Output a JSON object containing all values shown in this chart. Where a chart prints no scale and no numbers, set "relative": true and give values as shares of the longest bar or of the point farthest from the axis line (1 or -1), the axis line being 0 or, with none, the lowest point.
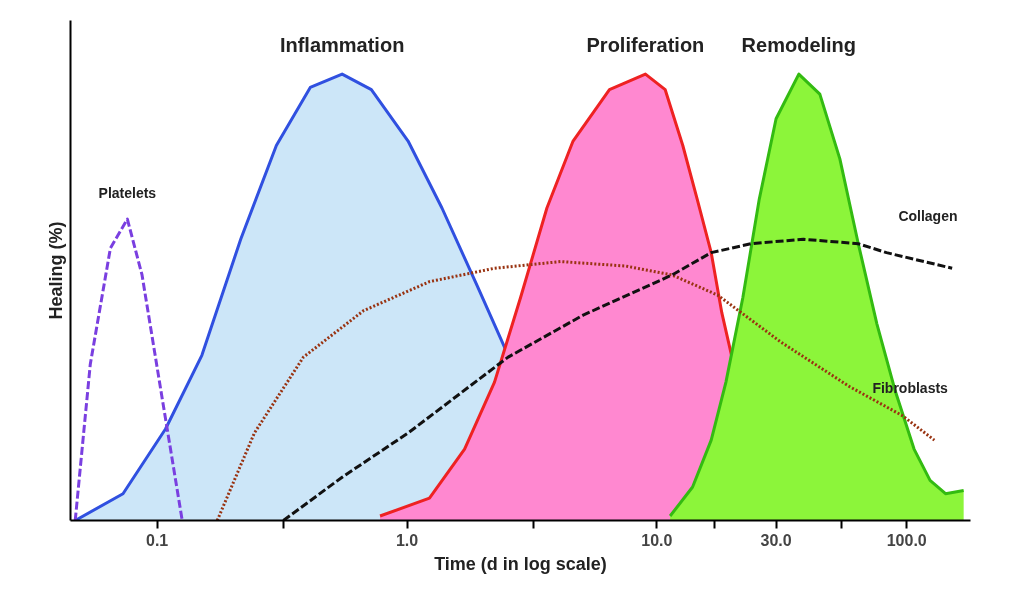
{
  "chart_data": {
    "type": "area",
    "relative": true,
    "xlabel": "Time (d in log scale)",
    "ylabel": "Healing (%)",
    "xlim": [
      0.045,
      180
    ],
    "xticks": [
      0.1,
      {
        "value": 0.32,
        "label": null
      },
      {
        "value": 1,
        "label": "1.0"
      },
      {
        "value": 3.2,
        "label": null
      },
      {
        "value": 10,
        "label": "10.0"
      },
      {
        "value": 17,
        "label": null
      },
      {
        "value": 30,
        "label": "30.0"
      },
      {
        "value": 55,
        "label": null
      },
      {
        "value": 100,
        "label": "100.0"
      }
    ],
    "grid": false,
    "log": "x",
    "series": [
      {
        "name": "Inflammation",
        "color": "#cce6f8",
        "x": [
          0.047,
          0.073,
          0.108,
          0.151,
          0.216,
          0.3,
          0.41,
          0.55,
          0.72,
          1.01,
          1.38,
          1.93,
          2.54
        ],
        "values": [
          0,
          0.06,
          0.205,
          0.37,
          0.63,
          0.84,
          0.97,
          1.0,
          0.965,
          0.85,
          0.7,
          0.52,
          0.37
        ]
      },
      {
        "name": "Proliferation",
        "color": "#ff88d0",
        "x": [
          0.78,
          1.23,
          1.7,
          2.24,
          2.85,
          3.63,
          4.62,
          6.46,
          9.0,
          10.8,
          12.7,
          14.5,
          16.5,
          18.2,
          19.9
        ],
        "values": [
          0.01,
          0.05,
          0.16,
          0.31,
          0.5,
          0.7,
          0.85,
          0.965,
          1.0,
          0.965,
          0.84,
          0.72,
          0.6,
          0.465,
          0.37
        ]
      },
      {
        "name": "Remodeling",
        "color": "#8cf53a",
        "x": [
          11.3,
          13.9,
          16.5,
          18.9,
          22.1,
          25.7,
          30,
          37,
          44.9,
          54,
          64,
          76,
          90,
          107,
          124,
          143,
          169
        ],
        "values": [
          0.01,
          0.075,
          0.18,
          0.31,
          0.5,
          0.72,
          0.9,
          1.0,
          0.955,
          0.81,
          0.62,
          0.44,
          0.29,
          0.16,
          0.09,
          0.06,
          0.067
        ]
      },
      {
        "name": "Platelets",
        "type": "line",
        "line_style": "dashed",
        "color": "#7a3fe0",
        "x": [
          0.047,
          0.054,
          0.065,
          0.076,
          0.087,
          0.105,
          0.126
        ],
        "values": [
          0,
          0.35,
          0.61,
          0.675,
          0.55,
          0.27,
          0
        ]
      },
      {
        "name": "Fibroblasts",
        "type": "line",
        "line_style": "dotted",
        "color": "#993311",
        "x": [
          0.174,
          0.245,
          0.385,
          0.67,
          1.23,
          2.24,
          4.12,
          7.5,
          11.5,
          17.5,
          31.3,
          59,
          96,
          129
        ],
        "values": [
          0,
          0.196,
          0.366,
          0.47,
          0.535,
          0.565,
          0.58,
          0.57,
          0.55,
          0.505,
          0.4,
          0.3,
          0.235,
          0.18
        ]
      },
      {
        "name": "Collagen",
        "type": "line",
        "line_style": "dashed",
        "color": "#111111",
        "x": [
          0.32,
          0.55,
          1.01,
          2.54,
          5.07,
          11.5,
          16.5,
          23.8,
          38.6,
          64,
          83,
          152
        ],
        "values": [
          0,
          0.097,
          0.196,
          0.366,
          0.46,
          0.55,
          0.6,
          0.62,
          0.63,
          0.62,
          0.6,
          0.565
        ]
      }
    ]
  }
}
